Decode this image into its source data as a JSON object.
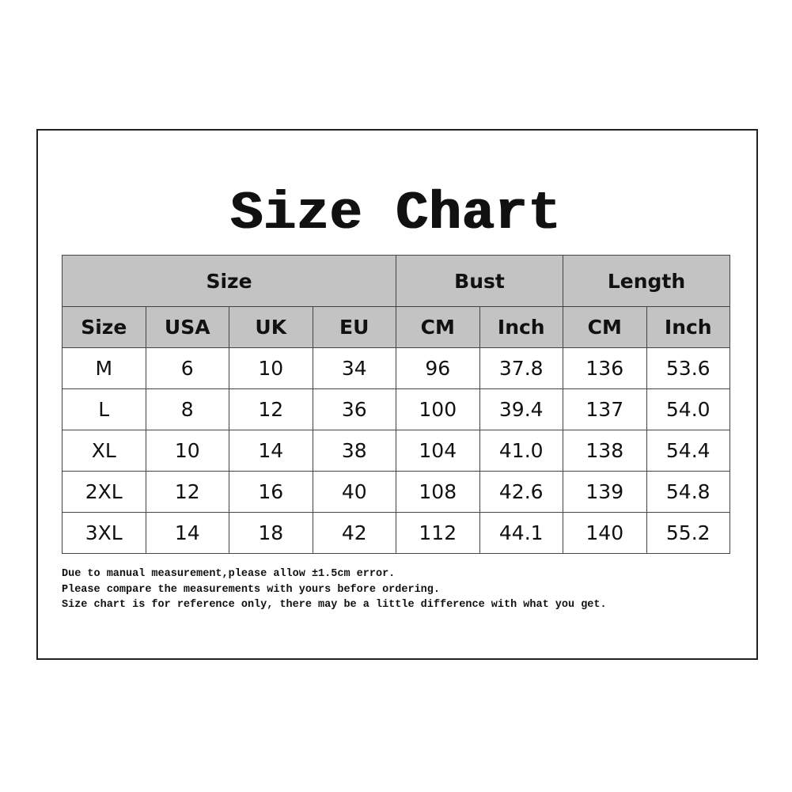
{
  "title": "Size Chart",
  "table": {
    "group_headers": [
      {
        "label": "Size",
        "span": 4
      },
      {
        "label": "Bust",
        "span": 2
      },
      {
        "label": "Length",
        "span": 2
      }
    ],
    "columns": [
      "Size",
      "USA",
      "UK",
      "EU",
      "CM",
      "Inch",
      "CM",
      "Inch"
    ],
    "rows": [
      [
        "M",
        "6",
        "10",
        "34",
        "96",
        "37.8",
        "136",
        "53.6"
      ],
      [
        "L",
        "8",
        "12",
        "36",
        "100",
        "39.4",
        "137",
        "54.0"
      ],
      [
        "XL",
        "10",
        "14",
        "38",
        "104",
        "41.0",
        "138",
        "54.4"
      ],
      [
        "2XL",
        "12",
        "16",
        "40",
        "108",
        "42.6",
        "139",
        "54.8"
      ],
      [
        "3XL",
        "14",
        "18",
        "42",
        "112",
        "44.1",
        "140",
        "55.2"
      ]
    ]
  },
  "notes": [
    "Due to manual measurement,please allow ±1.5cm error.",
    "Please compare the measurements with yours before ordering.",
    "Size chart is for reference only, there may be a little difference with what you get."
  ],
  "colors": {
    "header_bg": "#c3c3c3",
    "border": "#444444"
  }
}
